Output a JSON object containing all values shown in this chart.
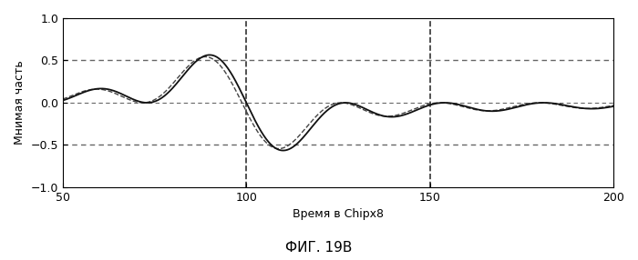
{
  "xlim": [
    50,
    200
  ],
  "ylim": [
    -1,
    1
  ],
  "xlabel": "Время в Chipx8",
  "ylabel": "Мнимая часть",
  "caption": "ФИГ. 19В",
  "hlines": [
    0.5,
    -0.5
  ],
  "vlines": [
    100,
    150
  ],
  "hline_color": "#666666",
  "vline_color": "#333333",
  "signal_color1": "#111111",
  "signal_color2": "#444444",
  "bg_color": "#ffffff",
  "xticks": [
    50,
    100,
    150,
    200
  ],
  "yticks": [
    -1,
    -0.5,
    0,
    0.5,
    1
  ],
  "label_fontsize": 9,
  "tick_fontsize": 9,
  "caption_fontsize": 11
}
